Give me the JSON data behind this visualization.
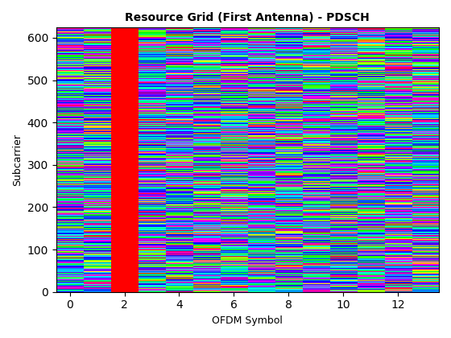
{
  "title": "Resource Grid (First Antenna) - PDSCH",
  "xlabel": "OFDM Symbol",
  "ylabel": "Subcarrier",
  "num_symbols": 14,
  "num_subcarriers": 624,
  "pilot_symbol_col": 2,
  "seed": 42,
  "colormap": "hsv",
  "xlim": [
    -0.5,
    13.5
  ],
  "ylim": [
    0,
    624
  ],
  "xticks": [
    0,
    2,
    4,
    6,
    8,
    10,
    12
  ],
  "yticks": [
    0,
    100,
    200,
    300,
    400,
    500,
    600
  ],
  "figsize": [
    5.6,
    4.2
  ],
  "dpi": 100,
  "title_fontsize": 10,
  "label_fontsize": 9,
  "title_fontweight": "bold"
}
